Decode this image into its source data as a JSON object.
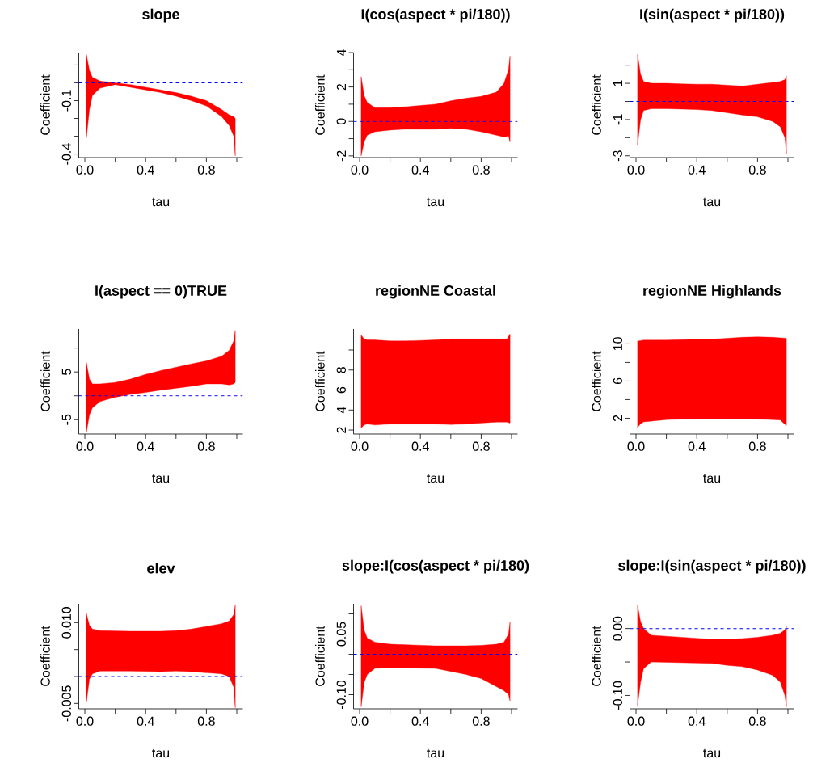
{
  "chart_data": [
    {
      "type": "line",
      "title": "slope",
      "xlabel": "tau",
      "ylabel": "Coefficient",
      "xlim": [
        -0.04,
        1.04
      ],
      "ylim": [
        -0.42,
        0.17
      ],
      "xticks": [
        {
          "value": 0,
          "label": "0.0"
        },
        {
          "value": 0.2,
          "label": null
        },
        {
          "value": 0.4,
          "label": "0.4"
        },
        {
          "value": 0.6,
          "label": null
        },
        {
          "value": 0.8,
          "label": "0.8"
        },
        {
          "value": 1,
          "label": null
        }
      ],
      "yticks": [
        {
          "value": -0.4,
          "label": "-0.4"
        },
        {
          "value": -0.3,
          "label": null
        },
        {
          "value": -0.2,
          "label": null
        },
        {
          "value": -0.1,
          "label": "-0.1"
        },
        {
          "value": 0,
          "label": null
        },
        {
          "value": 0.1,
          "label": null
        }
      ],
      "ref_lines": [
        {
          "axis": "y",
          "value": 0,
          "color": "#0000ff",
          "line_style": "dashed"
        }
      ],
      "series": [
        {
          "color": "#ff0000",
          "x": [
            0.01,
            0.03,
            0.05,
            0.1,
            0.15,
            0.2,
            0.3,
            0.4,
            0.5,
            0.6,
            0.7,
            0.8,
            0.9,
            0.95,
            0.98,
            0.99
          ],
          "values": [
            null,
            null,
            null,
            null,
            null,
            null,
            null,
            null,
            null,
            null,
            null,
            null,
            null,
            null,
            null,
            null
          ],
          "upper": [
            0.16,
            0.07,
            0.03,
            0.01,
            0.005,
            0.0,
            -0.01,
            -0.025,
            -0.04,
            -0.055,
            -0.075,
            -0.1,
            -0.15,
            -0.18,
            -0.19,
            -0.2
          ],
          "lower": [
            -0.31,
            -0.15,
            -0.07,
            -0.03,
            -0.02,
            -0.01,
            -0.025,
            -0.04,
            -0.055,
            -0.075,
            -0.1,
            -0.13,
            -0.19,
            -0.24,
            -0.3,
            -0.41
          ]
        }
      ]
    },
    {
      "type": "line",
      "title": "I(cos(aspect * pi/180))",
      "xlabel": "tau",
      "ylabel": "Coefficient",
      "xlim": [
        -0.04,
        1.04
      ],
      "ylim": [
        -2.1,
        4.0
      ],
      "xticks": [
        {
          "value": 0,
          "label": "0.0"
        },
        {
          "value": 0.2,
          "label": null
        },
        {
          "value": 0.4,
          "label": "0.4"
        },
        {
          "value": 0.6,
          "label": null
        },
        {
          "value": 0.8,
          "label": "0.8"
        },
        {
          "value": 1,
          "label": null
        }
      ],
      "yticks": [
        -2,
        {
          "value": -1,
          "label": null
        },
        0,
        {
          "value": 1,
          "label": null
        },
        2,
        {
          "value": 3,
          "label": null
        },
        4
      ],
      "ref_lines": [
        {
          "axis": "y",
          "value": 0,
          "color": "#0000ff",
          "line_style": "dashed"
        }
      ],
      "series": [
        {
          "color": "#ff0000",
          "x": [
            0.01,
            0.03,
            0.05,
            0.1,
            0.2,
            0.3,
            0.5,
            0.6,
            0.7,
            0.8,
            0.9,
            0.95,
            0.98,
            0.99
          ],
          "values": [
            null,
            null,
            null,
            null,
            null,
            null,
            null,
            null,
            null,
            null,
            null,
            null,
            null,
            null
          ],
          "upper": [
            2.6,
            1.5,
            1.1,
            0.8,
            0.8,
            0.85,
            1.0,
            1.2,
            1.35,
            1.45,
            1.7,
            2.2,
            3.0,
            3.8
          ],
          "lower": [
            -2.0,
            -1.2,
            -0.8,
            -0.6,
            -0.5,
            -0.45,
            -0.45,
            -0.4,
            -0.45,
            -0.6,
            -0.8,
            -0.9,
            -0.85,
            -1.2
          ]
        }
      ]
    },
    {
      "type": "line",
      "title": "I(sin(aspect * pi/180))",
      "xlabel": "tau",
      "ylabel": "Coefficient",
      "xlim": [
        -0.04,
        1.04
      ],
      "ylim": [
        -3.1,
        2.7
      ],
      "xticks": [
        {
          "value": 0,
          "label": "0.0"
        },
        {
          "value": 0.2,
          "label": null
        },
        {
          "value": 0.4,
          "label": "0.4"
        },
        {
          "value": 0.6,
          "label": null
        },
        {
          "value": 0.8,
          "label": "0.8"
        },
        {
          "value": 1,
          "label": null
        }
      ],
      "yticks": [
        -3,
        {
          "value": -2,
          "label": null
        },
        -1,
        {
          "value": 0,
          "label": null
        },
        1,
        {
          "value": 2,
          "label": null
        }
      ],
      "ref_lines": [
        {
          "axis": "y",
          "value": 0,
          "color": "#0000ff",
          "line_style": "dashed"
        }
      ],
      "series": [
        {
          "color": "#ff0000",
          "x": [
            0.01,
            0.03,
            0.05,
            0.1,
            0.2,
            0.3,
            0.4,
            0.5,
            0.7,
            0.8,
            0.9,
            0.95,
            0.98,
            0.99
          ],
          "values": [
            null,
            null,
            null,
            null,
            null,
            null,
            null,
            null,
            null,
            null,
            null,
            null,
            null,
            null
          ],
          "upper": [
            2.6,
            1.5,
            1.1,
            1.0,
            1.0,
            0.97,
            0.95,
            0.95,
            0.85,
            0.95,
            1.05,
            1.1,
            1.2,
            1.4
          ],
          "lower": [
            -2.4,
            -1.0,
            -0.5,
            -0.4,
            -0.4,
            -0.42,
            -0.45,
            -0.5,
            -0.75,
            -0.85,
            -1.1,
            -1.4,
            -2.0,
            -2.9
          ]
        }
      ]
    },
    {
      "type": "line",
      "title": "I(aspect == 0)TRUE",
      "xlabel": "tau",
      "ylabel": "Coefficient",
      "xlim": [
        -0.04,
        1.04
      ],
      "ylim": [
        -8,
        14
      ],
      "xticks": [
        {
          "value": 0,
          "label": "0.0"
        },
        {
          "value": 0.2,
          "label": null
        },
        {
          "value": 0.4,
          "label": "0.4"
        },
        {
          "value": 0.6,
          "label": null
        },
        {
          "value": 0.8,
          "label": "0.8"
        },
        {
          "value": 1,
          "label": null
        }
      ],
      "yticks": [
        -5,
        {
          "value": 0,
          "label": null
        },
        5,
        {
          "value": 10,
          "label": null
        }
      ],
      "ref_lines": [
        {
          "axis": "y",
          "value": 0,
          "color": "#0000ff",
          "line_style": "dashed"
        }
      ],
      "series": [
        {
          "color": "#ff0000",
          "x": [
            0.01,
            0.03,
            0.05,
            0.1,
            0.2,
            0.3,
            0.4,
            0.5,
            0.7,
            0.8,
            0.9,
            0.95,
            0.98,
            0.99
          ],
          "values": [
            null,
            null,
            null,
            null,
            null,
            null,
            null,
            null,
            null,
            null,
            null,
            null,
            null,
            null
          ],
          "upper": [
            7,
            3.5,
            2.5,
            2.5,
            2.8,
            3.5,
            4.5,
            5.3,
            6.7,
            7.3,
            8.3,
            9.5,
            11.5,
            13.7
          ],
          "lower": [
            -7.7,
            -4,
            -2.5,
            -1.2,
            -0.3,
            0.3,
            0.7,
            1.2,
            2,
            2.5,
            2.5,
            2.3,
            2.5,
            2.8
          ]
        }
      ]
    },
    {
      "type": "line",
      "title": "regionNE Coastal",
      "xlabel": "tau",
      "ylabel": "Coefficient",
      "xlim": [
        -0.04,
        1.04
      ],
      "ylim": [
        1.6,
        12.1
      ],
      "xticks": [
        {
          "value": 0,
          "label": "0.0"
        },
        {
          "value": 0.2,
          "label": null
        },
        {
          "value": 0.4,
          "label": "0.4"
        },
        {
          "value": 0.6,
          "label": null
        },
        {
          "value": 0.8,
          "label": "0.8"
        },
        {
          "value": 1,
          "label": null
        }
      ],
      "yticks": [
        2,
        4,
        6,
        8,
        {
          "value": 10,
          "label": null
        }
      ],
      "series": [
        {
          "color": "#ff0000",
          "x": [
            0.01,
            0.03,
            0.05,
            0.1,
            0.2,
            0.3,
            0.4,
            0.5,
            0.6,
            0.7,
            0.8,
            0.9,
            0.97,
            0.99
          ],
          "values": [
            null,
            null,
            null,
            null,
            null,
            null,
            null,
            null,
            null,
            null,
            null,
            null,
            null,
            null
          ],
          "upper": [
            11.5,
            11.1,
            11.0,
            11.0,
            10.9,
            10.9,
            10.95,
            11.0,
            11.1,
            11.1,
            11.1,
            11.1,
            11.1,
            11.6
          ],
          "lower": [
            2.2,
            2.5,
            2.6,
            2.5,
            2.6,
            2.6,
            2.6,
            2.6,
            2.55,
            2.6,
            2.7,
            2.8,
            2.8,
            2.7
          ]
        }
      ]
    },
    {
      "type": "line",
      "title": "regionNE Highlands",
      "xlabel": "tau",
      "ylabel": "Coefficient",
      "xlim": [
        -0.04,
        1.04
      ],
      "ylim": [
        0.3,
        11.6
      ],
      "xticks": [
        {
          "value": 0,
          "label": "0.0"
        },
        {
          "value": 0.2,
          "label": null
        },
        {
          "value": 0.4,
          "label": "0.4"
        },
        {
          "value": 0.6,
          "label": null
        },
        {
          "value": 0.8,
          "label": "0.8"
        },
        {
          "value": 1,
          "label": null
        }
      ],
      "yticks": [
        2,
        {
          "value": 4,
          "label": null
        },
        6,
        {
          "value": 8,
          "label": null
        },
        10
      ],
      "series": [
        {
          "color": "#ff0000",
          "x": [
            0.01,
            0.03,
            0.05,
            0.2,
            0.3,
            0.4,
            0.5,
            0.6,
            0.7,
            0.8,
            0.9,
            0.95,
            0.99
          ],
          "values": [
            null,
            null,
            null,
            null,
            null,
            null,
            null,
            null,
            null,
            null,
            null,
            null,
            null
          ],
          "upper": [
            10.3,
            10.35,
            10.4,
            10.4,
            10.45,
            10.5,
            10.5,
            10.6,
            10.7,
            10.75,
            10.7,
            10.65,
            10.6
          ],
          "lower": [
            1.0,
            1.4,
            1.6,
            1.85,
            1.9,
            1.9,
            1.95,
            1.9,
            1.95,
            1.9,
            1.85,
            1.8,
            1.2
          ]
        }
      ]
    },
    {
      "type": "line",
      "title": "elev",
      "xlabel": "tau",
      "ylabel": "Coefficient",
      "xlim": [
        -0.04,
        1.04
      ],
      "ylim": [
        -0.006,
        0.0135
      ],
      "xticks": [
        {
          "value": 0,
          "label": "0.0"
        },
        {
          "value": 0.2,
          "label": null
        },
        {
          "value": 0.4,
          "label": "0.4"
        },
        {
          "value": 0.6,
          "label": null
        },
        {
          "value": 0.8,
          "label": "0.8"
        },
        {
          "value": 1,
          "label": null
        }
      ],
      "yticks": [
        -0.005,
        {
          "value": 0,
          "label": null
        },
        {
          "value": 0.005,
          "label": null
        },
        {
          "value": 0.01,
          "label": "0.010"
        }
      ],
      "ref_lines": [
        {
          "axis": "y",
          "value": 0,
          "color": "#0000ff",
          "line_style": "dashed"
        }
      ],
      "series": [
        {
          "color": "#ff0000",
          "x": [
            0.01,
            0.03,
            0.05,
            0.1,
            0.3,
            0.5,
            0.6,
            0.7,
            0.9,
            0.95,
            0.98,
            0.99
          ],
          "values": [
            null,
            null,
            null,
            null,
            null,
            null,
            null,
            null,
            null,
            null,
            null,
            null
          ],
          "upper": [
            0.0117,
            0.0095,
            0.0088,
            0.0085,
            0.0084,
            0.0084,
            0.0085,
            0.0088,
            0.0098,
            0.0103,
            0.0115,
            0.0132
          ],
          "lower": [
            -0.0048,
            -0.0005,
            0.0005,
            0.001,
            0.001,
            0.0009,
            0.001,
            0.0009,
            0.0005,
            0.0,
            -0.002,
            -0.0058
          ]
        }
      ]
    },
    {
      "type": "line",
      "title": "slope:I(cos(aspect * pi/180)",
      "xlabel": "tau",
      "ylabel": "Coefficient",
      "xlim": [
        -0.04,
        1.04
      ],
      "ylim": [
        -0.135,
        0.125
      ],
      "xticks": [
        {
          "value": 0,
          "label": "0.0"
        },
        {
          "value": 0.2,
          "label": null
        },
        {
          "value": 0.4,
          "label": "0.4"
        },
        {
          "value": 0.6,
          "label": null
        },
        {
          "value": 0.8,
          "label": "0.8"
        },
        {
          "value": 1,
          "label": null
        }
      ],
      "yticks": [
        {
          "value": -0.1,
          "label": "-0.10"
        },
        {
          "value": -0.05,
          "label": null
        },
        {
          "value": 0,
          "label": null
        },
        0.05,
        {
          "value": 0.1,
          "label": null
        }
      ],
      "ref_lines": [
        {
          "axis": "y",
          "value": 0,
          "color": "#0000ff",
          "line_style": "dashed"
        }
      ],
      "series": [
        {
          "color": "#ff0000",
          "x": [
            0.01,
            0.03,
            0.05,
            0.1,
            0.2,
            0.5,
            0.7,
            0.8,
            0.9,
            0.95,
            0.98,
            0.99
          ],
          "values": [
            null,
            null,
            null,
            null,
            null,
            null,
            null,
            null,
            null,
            null,
            null,
            null
          ],
          "upper": [
            0.12,
            0.06,
            0.04,
            0.03,
            0.025,
            0.021,
            0.021,
            0.022,
            0.025,
            0.03,
            0.05,
            0.08
          ],
          "lower": [
            -0.13,
            -0.07,
            -0.05,
            -0.035,
            -0.033,
            -0.035,
            -0.05,
            -0.06,
            -0.08,
            -0.09,
            -0.1,
            -0.115
          ]
        }
      ]
    },
    {
      "type": "line",
      "title": "slope:I(sin(aspect * pi/180))",
      "xlabel": "tau",
      "ylabel": "Coefficient",
      "xlim": [
        -0.04,
        1.04
      ],
      "ylim": [
        -0.12,
        0.037
      ],
      "xticks": [
        {
          "value": 0,
          "label": "0.0"
        },
        {
          "value": 0.2,
          "label": null
        },
        {
          "value": 0.4,
          "label": "0.4"
        },
        {
          "value": 0.6,
          "label": null
        },
        {
          "value": 0.8,
          "label": "0.8"
        },
        {
          "value": 1,
          "label": null
        }
      ],
      "yticks": [
        {
          "value": -0.1,
          "label": "-0.10"
        },
        {
          "value": -0.05,
          "label": null
        },
        {
          "value": 0,
          "label": "0.00"
        }
      ],
      "ref_lines": [
        {
          "axis": "y",
          "value": 0,
          "color": "#0000ff",
          "line_style": "dashed"
        }
      ],
      "series": [
        {
          "color": "#ff0000",
          "x": [
            0.01,
            0.03,
            0.05,
            0.1,
            0.5,
            0.6,
            0.7,
            0.8,
            0.9,
            0.95,
            0.98,
            0.99
          ],
          "values": [
            null,
            null,
            null,
            null,
            null,
            null,
            null,
            null,
            null,
            null,
            null,
            null
          ],
          "upper": [
            0.035,
            0.01,
            0.0,
            -0.01,
            -0.016,
            -0.016,
            -0.015,
            -0.013,
            -0.01,
            -0.007,
            -0.002,
            0.003
          ],
          "lower": [
            -0.115,
            -0.08,
            -0.06,
            -0.05,
            -0.052,
            -0.055,
            -0.057,
            -0.062,
            -0.07,
            -0.08,
            -0.1,
            -0.117
          ]
        }
      ]
    }
  ]
}
